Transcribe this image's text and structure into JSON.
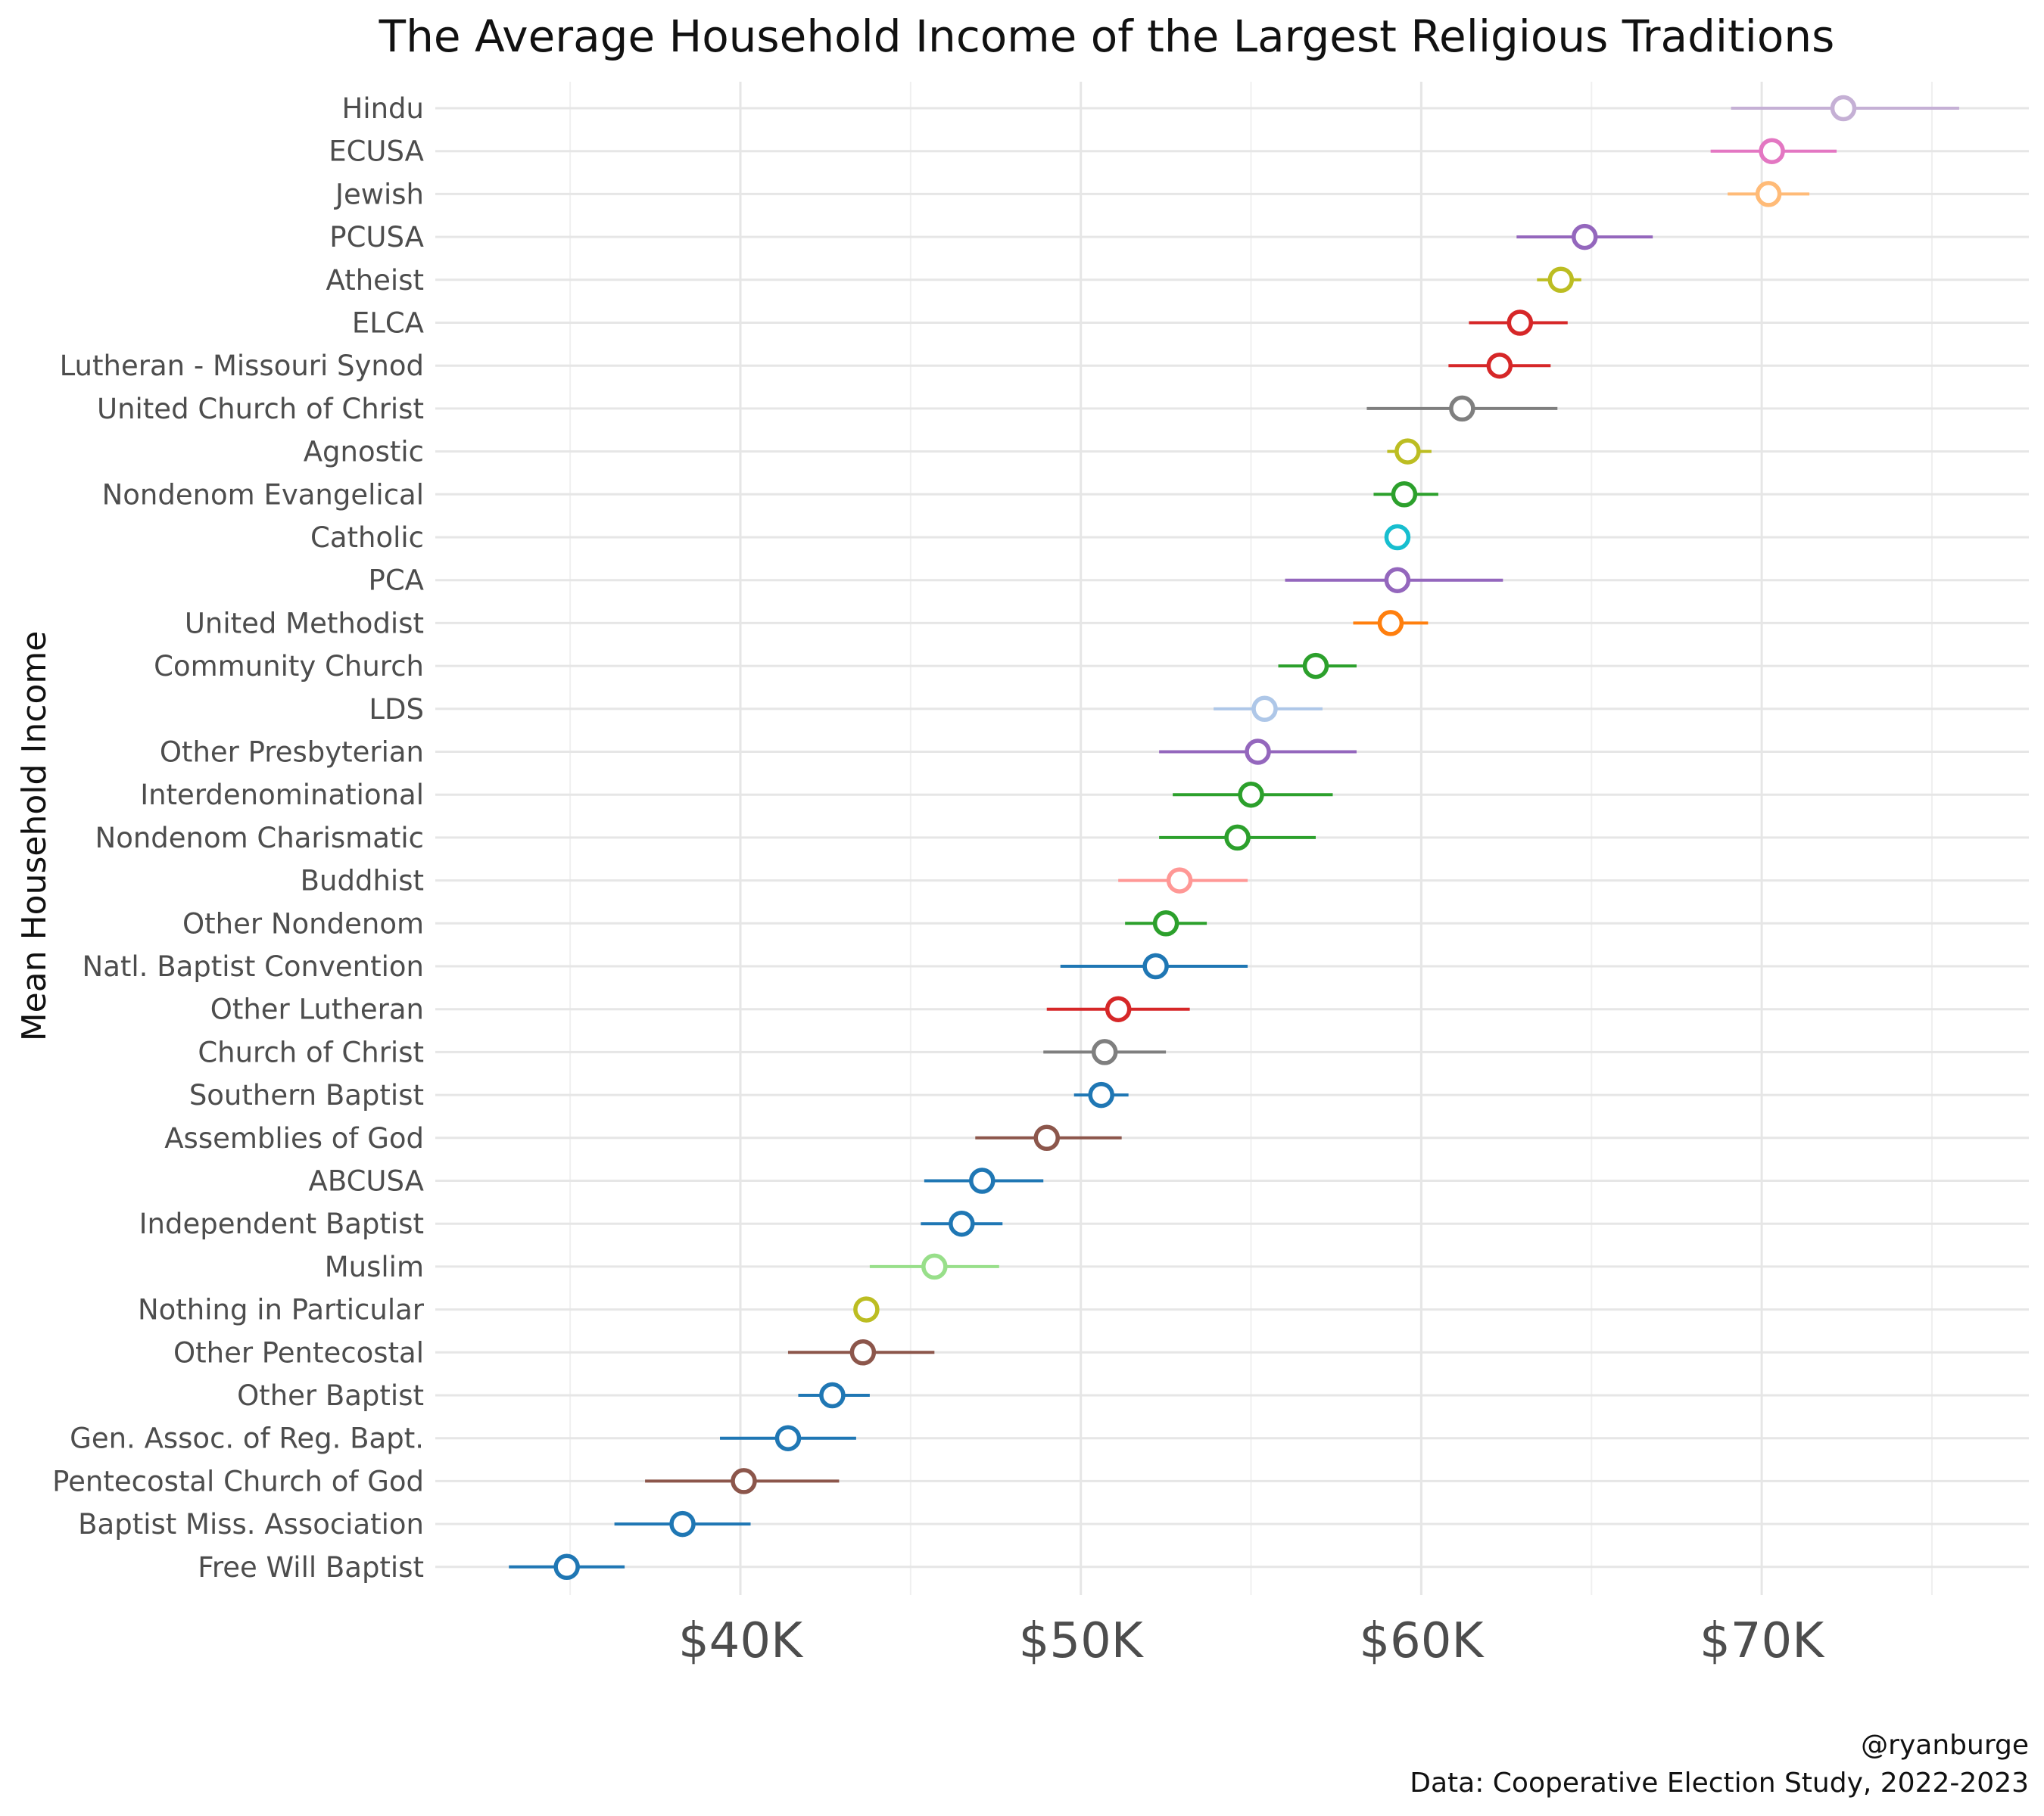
{
  "chart_data": {
    "type": "scatter",
    "title": "The Average Household Income of the Largest Religious Traditions",
    "ylabel": "Mean Household Income",
    "xlabel": "",
    "xlim": [
      31000,
      76500
    ],
    "x_ticks": [
      40000,
      50000,
      60000,
      70000
    ],
    "x_tick_labels": [
      "$40K",
      "$50K",
      "$60K",
      "$70K"
    ],
    "grid": true,
    "legend": "none",
    "caption_lines": [
      "@ryanburge",
      "Data: Cooperative Election Study, 2022-2023"
    ],
    "categories": [
      "Hindu",
      "ECUSA",
      "Jewish",
      "PCUSA",
      "Atheist",
      "ELCA",
      "Lutheran - Missouri Synod",
      "United Church of Christ",
      "Agnostic",
      "Nondenom Evangelical",
      "Catholic",
      "PCA",
      "United Methodist",
      "Community Church",
      "LDS",
      "Other Presbyterian",
      "Interdenominational",
      "Nondenom Charismatic",
      "Buddhist",
      "Other Nondenom",
      "Natl. Baptist Convention",
      "Other Lutheran",
      "Church of Christ",
      "Southern Baptist",
      "Assemblies of God",
      "ABCUSA",
      "Independent Baptist",
      "Muslim",
      "Nothing in Particular",
      "Other Pentecostal",
      "Other Baptist",
      "Gen. Assoc. of Reg. Bapt.",
      "Pentecostal Church of God",
      "Baptist Miss. Association",
      "Free Will Baptist"
    ],
    "values": [
      72400,
      70300,
      70200,
      64800,
      64100,
      62900,
      62300,
      61200,
      59600,
      59500,
      59300,
      59300,
      59100,
      56900,
      55400,
      55200,
      55000,
      54600,
      52900,
      52500,
      52200,
      51100,
      50700,
      50600,
      49000,
      47100,
      46500,
      45700,
      43700,
      43600,
      42700,
      41400,
      40100,
      38300,
      34900
    ],
    "lower": [
      69100,
      68500,
      69000,
      62800,
      63400,
      61400,
      60800,
      58400,
      59000,
      58600,
      59300,
      56000,
      58000,
      55800,
      53900,
      52300,
      52700,
      52300,
      51100,
      51300,
      49400,
      49000,
      48900,
      49800,
      46900,
      45400,
      45300,
      43800,
      43700,
      41400,
      41700,
      39400,
      37200,
      36300,
      33200
    ],
    "upper": [
      75800,
      72200,
      71400,
      66800,
      64700,
      64300,
      63800,
      64000,
      60300,
      60500,
      59300,
      62400,
      60200,
      58100,
      57100,
      58100,
      57400,
      56900,
      54900,
      53700,
      54900,
      53200,
      52500,
      51400,
      51200,
      48900,
      47700,
      47600,
      43700,
      45700,
      43800,
      43400,
      42900,
      40300,
      36600
    ],
    "colors": [
      "#c5b0d5",
      "#e377c2",
      "#ffbb78",
      "#9467bd",
      "#bcbd22",
      "#d62728",
      "#d62728",
      "#7f7f7f",
      "#bcbd22",
      "#2ca02c",
      "#17becf",
      "#9467bd",
      "#ff7f0e",
      "#2ca02c",
      "#aec7e8",
      "#9467bd",
      "#2ca02c",
      "#2ca02c",
      "#ff9896",
      "#2ca02c",
      "#1f77b4",
      "#d62728",
      "#7f7f7f",
      "#1f77b4",
      "#8c564b",
      "#1f77b4",
      "#1f77b4",
      "#98df8a",
      "#bcbd22",
      "#8c564b",
      "#1f77b4",
      "#1f77b4",
      "#8c564b",
      "#1f77b4",
      "#1f77b4"
    ]
  }
}
